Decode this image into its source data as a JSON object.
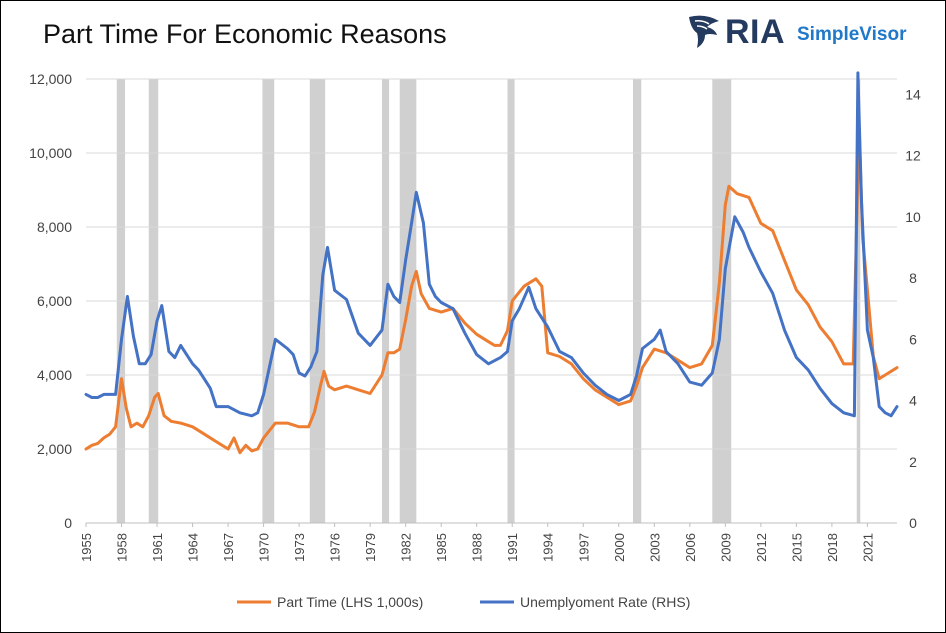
{
  "chart_data": {
    "type": "line",
    "title": "Part Time For Economic Reasons",
    "logo_text": {
      "main": "RIA",
      "sub": "SimpleVisor"
    },
    "x_ticks": [
      "1955",
      "1958",
      "1961",
      "1964",
      "1967",
      "1970",
      "1973",
      "1976",
      "1979",
      "1982",
      "1985",
      "1988",
      "1991",
      "1994",
      "1997",
      "2000",
      "2003",
      "2006",
      "2009",
      "2012",
      "2015",
      "2018",
      "2021"
    ],
    "xlim": [
      1955.0,
      2023.5
    ],
    "y_left": {
      "label": "",
      "ticks": [
        "0",
        "2,000",
        "4,000",
        "6,000",
        "8,000",
        "10,000",
        "12,000"
      ],
      "lim": [
        0,
        12000
      ]
    },
    "y_right": {
      "label": "",
      "ticks": [
        "0",
        "2",
        "4",
        "6",
        "8",
        "10",
        "12",
        "14"
      ],
      "lim": [
        0,
        14.5
      ]
    },
    "grid": "horizontal",
    "legend_position": "bottom",
    "recessions": [
      [
        1957.6,
        1958.3
      ],
      [
        1960.3,
        1961.1
      ],
      [
        1969.9,
        1970.9
      ],
      [
        1973.9,
        1975.2
      ],
      [
        1980.0,
        1980.6
      ],
      [
        1981.5,
        1982.9
      ],
      [
        1990.6,
        1991.2
      ],
      [
        2001.2,
        2001.9
      ],
      [
        2007.9,
        2009.5
      ],
      [
        2020.1,
        2020.4
      ]
    ],
    "series": [
      {
        "name": "Part Time (LHS 1,000s)",
        "axis": "left",
        "color": "#ED7D31",
        "points": [
          [
            1955.0,
            2000
          ],
          [
            1955.5,
            2100
          ],
          [
            1956.0,
            2150
          ],
          [
            1956.5,
            2300
          ],
          [
            1957.0,
            2400
          ],
          [
            1957.5,
            2600
          ],
          [
            1958.0,
            3900
          ],
          [
            1958.4,
            3100
          ],
          [
            1958.8,
            2600
          ],
          [
            1959.3,
            2700
          ],
          [
            1959.8,
            2600
          ],
          [
            1960.3,
            2900
          ],
          [
            1960.8,
            3400
          ],
          [
            1961.1,
            3500
          ],
          [
            1961.6,
            2900
          ],
          [
            1962.2,
            2750
          ],
          [
            1963.0,
            2700
          ],
          [
            1964.0,
            2600
          ],
          [
            1965.0,
            2400
          ],
          [
            1966.0,
            2200
          ],
          [
            1967.0,
            2000
          ],
          [
            1967.5,
            2300
          ],
          [
            1968.0,
            1900
          ],
          [
            1968.5,
            2100
          ],
          [
            1969.0,
            1950
          ],
          [
            1969.5,
            2000
          ],
          [
            1970.0,
            2300
          ],
          [
            1970.5,
            2500
          ],
          [
            1971.0,
            2700
          ],
          [
            1972.0,
            2700
          ],
          [
            1973.0,
            2600
          ],
          [
            1973.8,
            2600
          ],
          [
            1974.3,
            3000
          ],
          [
            1974.8,
            3700
          ],
          [
            1975.1,
            4100
          ],
          [
            1975.5,
            3700
          ],
          [
            1976.0,
            3600
          ],
          [
            1977.0,
            3700
          ],
          [
            1978.0,
            3600
          ],
          [
            1979.0,
            3500
          ],
          [
            1980.0,
            4000
          ],
          [
            1980.5,
            4600
          ],
          [
            1981.0,
            4600
          ],
          [
            1981.5,
            4700
          ],
          [
            1982.0,
            5500
          ],
          [
            1982.5,
            6400
          ],
          [
            1982.9,
            6800
          ],
          [
            1983.3,
            6200
          ],
          [
            1984.0,
            5800
          ],
          [
            1985.0,
            5700
          ],
          [
            1986.0,
            5800
          ],
          [
            1987.0,
            5400
          ],
          [
            1988.0,
            5100
          ],
          [
            1989.0,
            4900
          ],
          [
            1989.5,
            4800
          ],
          [
            1990.0,
            4800
          ],
          [
            1990.6,
            5200
          ],
          [
            1991.0,
            6000
          ],
          [
            1991.5,
            6200
          ],
          [
            1992.0,
            6400
          ],
          [
            1993.0,
            6600
          ],
          [
            1993.5,
            6400
          ],
          [
            1994.0,
            4600
          ],
          [
            1995.0,
            4500
          ],
          [
            1996.0,
            4300
          ],
          [
            1997.0,
            3900
          ],
          [
            1998.0,
            3600
          ],
          [
            1999.0,
            3400
          ],
          [
            2000.0,
            3200
          ],
          [
            2001.0,
            3300
          ],
          [
            2001.5,
            3700
          ],
          [
            2002.0,
            4200
          ],
          [
            2003.0,
            4700
          ],
          [
            2004.0,
            4600
          ],
          [
            2005.0,
            4400
          ],
          [
            2006.0,
            4200
          ],
          [
            2007.0,
            4300
          ],
          [
            2007.9,
            4800
          ],
          [
            2008.5,
            6500
          ],
          [
            2009.0,
            8600
          ],
          [
            2009.3,
            9100
          ],
          [
            2010.0,
            8900
          ],
          [
            2011.0,
            8800
          ],
          [
            2012.0,
            8100
          ],
          [
            2013.0,
            7900
          ],
          [
            2014.0,
            7100
          ],
          [
            2015.0,
            6300
          ],
          [
            2016.0,
            5900
          ],
          [
            2017.0,
            5300
          ],
          [
            2018.0,
            4900
          ],
          [
            2019.0,
            4300
          ],
          [
            2019.8,
            4300
          ],
          [
            2020.3,
            10700
          ],
          [
            2020.6,
            7700
          ],
          [
            2021.0,
            6300
          ],
          [
            2021.5,
            4500
          ],
          [
            2022.0,
            3900
          ],
          [
            2022.5,
            4000
          ],
          [
            2023.0,
            4100
          ],
          [
            2023.5,
            4200
          ]
        ]
      },
      {
        "name": "Unemplyoment Rate (RHS)",
        "axis": "right",
        "color": "#4472C4",
        "points": [
          [
            1955.0,
            4.2
          ],
          [
            1955.5,
            4.1
          ],
          [
            1956.0,
            4.1
          ],
          [
            1956.5,
            4.2
          ],
          [
            1957.0,
            4.2
          ],
          [
            1957.5,
            4.2
          ],
          [
            1958.0,
            6.0
          ],
          [
            1958.5,
            7.4
          ],
          [
            1959.0,
            6.1
          ],
          [
            1959.5,
            5.2
          ],
          [
            1960.0,
            5.2
          ],
          [
            1960.5,
            5.5
          ],
          [
            1961.0,
            6.6
          ],
          [
            1961.4,
            7.1
          ],
          [
            1962.0,
            5.6
          ],
          [
            1962.5,
            5.4
          ],
          [
            1963.0,
            5.8
          ],
          [
            1963.5,
            5.5
          ],
          [
            1964.0,
            5.2
          ],
          [
            1964.5,
            5.0
          ],
          [
            1965.0,
            4.7
          ],
          [
            1965.5,
            4.4
          ],
          [
            1966.0,
            3.8
          ],
          [
            1967.0,
            3.8
          ],
          [
            1968.0,
            3.6
          ],
          [
            1969.0,
            3.5
          ],
          [
            1969.5,
            3.6
          ],
          [
            1970.0,
            4.2
          ],
          [
            1970.5,
            5.1
          ],
          [
            1971.0,
            6.0
          ],
          [
            1972.0,
            5.7
          ],
          [
            1972.5,
            5.5
          ],
          [
            1973.0,
            4.9
          ],
          [
            1973.5,
            4.8
          ],
          [
            1974.0,
            5.1
          ],
          [
            1974.5,
            5.6
          ],
          [
            1975.0,
            8.1
          ],
          [
            1975.4,
            9.0
          ],
          [
            1976.0,
            7.6
          ],
          [
            1977.0,
            7.3
          ],
          [
            1978.0,
            6.2
          ],
          [
            1979.0,
            5.8
          ],
          [
            1980.0,
            6.3
          ],
          [
            1980.5,
            7.8
          ],
          [
            1981.0,
            7.4
          ],
          [
            1981.5,
            7.2
          ],
          [
            1982.0,
            8.6
          ],
          [
            1982.5,
            9.8
          ],
          [
            1982.9,
            10.8
          ],
          [
            1983.5,
            9.8
          ],
          [
            1984.0,
            7.8
          ],
          [
            1984.5,
            7.4
          ],
          [
            1985.0,
            7.2
          ],
          [
            1986.0,
            7.0
          ],
          [
            1987.0,
            6.2
          ],
          [
            1988.0,
            5.5
          ],
          [
            1989.0,
            5.2
          ],
          [
            1990.0,
            5.4
          ],
          [
            1990.6,
            5.6
          ],
          [
            1991.0,
            6.6
          ],
          [
            1991.6,
            7.0
          ],
          [
            1992.4,
            7.7
          ],
          [
            1993.0,
            7.0
          ],
          [
            1994.0,
            6.4
          ],
          [
            1995.0,
            5.6
          ],
          [
            1996.0,
            5.4
          ],
          [
            1997.0,
            4.9
          ],
          [
            1998.0,
            4.5
          ],
          [
            1999.0,
            4.2
          ],
          [
            2000.0,
            4.0
          ],
          [
            2001.0,
            4.2
          ],
          [
            2001.5,
            4.8
          ],
          [
            2002.0,
            5.7
          ],
          [
            2003.0,
            6.0
          ],
          [
            2003.5,
            6.3
          ],
          [
            2004.0,
            5.6
          ],
          [
            2005.0,
            5.2
          ],
          [
            2006.0,
            4.6
          ],
          [
            2007.0,
            4.5
          ],
          [
            2007.9,
            4.9
          ],
          [
            2008.5,
            6.0
          ],
          [
            2009.0,
            8.3
          ],
          [
            2009.8,
            10.0
          ],
          [
            2010.5,
            9.5
          ],
          [
            2011.0,
            9.0
          ],
          [
            2012.0,
            8.2
          ],
          [
            2013.0,
            7.5
          ],
          [
            2014.0,
            6.3
          ],
          [
            2015.0,
            5.4
          ],
          [
            2016.0,
            5.0
          ],
          [
            2017.0,
            4.4
          ],
          [
            2018.0,
            3.9
          ],
          [
            2019.0,
            3.6
          ],
          [
            2019.9,
            3.5
          ],
          [
            2020.2,
            14.7
          ],
          [
            2020.5,
            10.5
          ],
          [
            2021.0,
            6.3
          ],
          [
            2021.5,
            5.4
          ],
          [
            2022.0,
            3.8
          ],
          [
            2022.5,
            3.6
          ],
          [
            2023.0,
            3.5
          ],
          [
            2023.5,
            3.8
          ]
        ]
      }
    ]
  }
}
